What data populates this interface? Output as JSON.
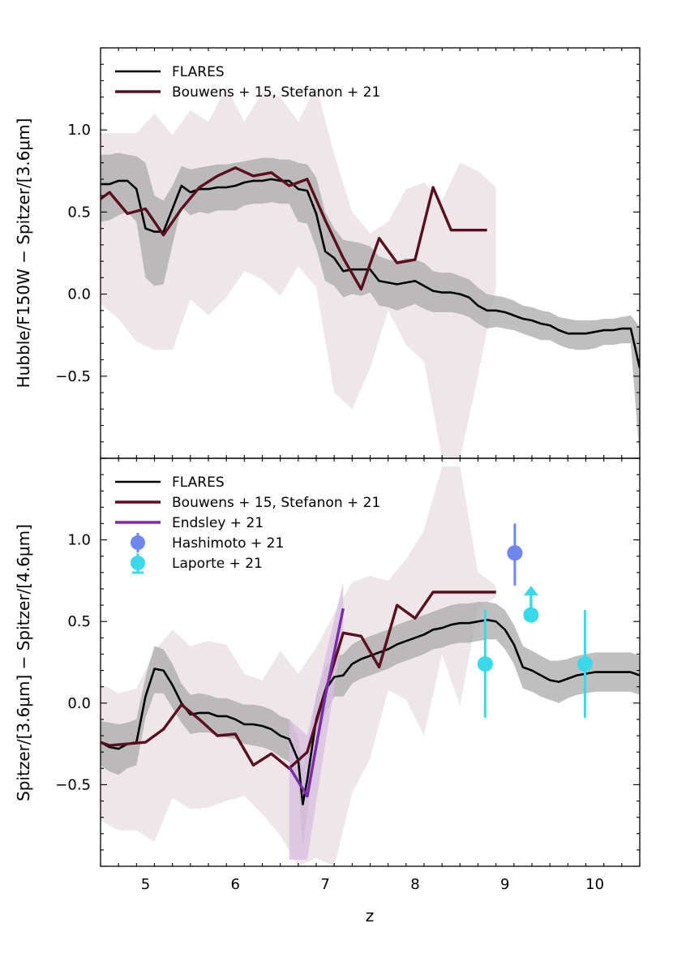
{
  "chart_data": [
    {
      "type": "line",
      "panel": "top",
      "xlabel": "z",
      "ylabel": "Hubble/F150W − Spitzer/[3.6μm]",
      "xlim": [
        4.5,
        10.5
      ],
      "ylim": [
        -1.0,
        1.5
      ],
      "xticks": [
        5,
        6,
        7,
        8,
        9,
        10
      ],
      "xtick_labels": [
        "5",
        "6",
        "7",
        "8",
        "9",
        "10"
      ],
      "yticks": [
        -0.5,
        0.0,
        0.5,
        1.0
      ],
      "ytick_labels": [
        "−0.5",
        "0.0",
        "0.5",
        "1.0"
      ],
      "legend": [
        "FLARES",
        "Bouwens + 15,  Stefanon + 21"
      ],
      "legend_position": "top-left",
      "series": [
        {
          "name": "FLARES",
          "color": "#000000",
          "x": [
            4.5,
            4.6,
            4.7,
            4.8,
            4.9,
            5.0,
            5.1,
            5.2,
            5.3,
            5.4,
            5.5,
            5.6,
            5.7,
            5.8,
            5.9,
            6.0,
            6.1,
            6.2,
            6.3,
            6.4,
            6.5,
            6.6,
            6.7,
            6.8,
            6.9,
            7.0,
            7.1,
            7.2,
            7.3,
            7.4,
            7.5,
            7.6,
            7.7,
            7.8,
            7.9,
            8.0,
            8.1,
            8.2,
            8.3,
            8.4,
            8.5,
            8.6,
            8.7,
            8.8,
            8.9,
            9.0,
            9.1,
            9.2,
            9.3,
            9.4,
            9.5,
            9.6,
            9.7,
            9.8,
            9.9,
            10.0,
            10.1,
            10.2,
            10.3,
            10.4,
            10.5
          ],
          "values": [
            0.67,
            0.67,
            0.69,
            0.69,
            0.64,
            0.4,
            0.38,
            0.38,
            0.52,
            0.66,
            0.62,
            0.64,
            0.64,
            0.65,
            0.65,
            0.66,
            0.68,
            0.69,
            0.69,
            0.7,
            0.69,
            0.69,
            0.64,
            0.63,
            0.49,
            0.26,
            0.22,
            0.14,
            0.15,
            0.15,
            0.15,
            0.08,
            0.07,
            0.06,
            0.07,
            0.08,
            0.05,
            0.02,
            0.01,
            0.01,
            0.0,
            -0.02,
            -0.07,
            -0.1,
            -0.1,
            -0.11,
            -0.13,
            -0.15,
            -0.16,
            -0.18,
            -0.19,
            -0.22,
            -0.24,
            -0.24,
            -0.24,
            -0.23,
            -0.22,
            -0.22,
            -0.21,
            -0.21,
            -0.45
          ]
        },
        {
          "name": "Bouwens + 15,  Stefanon + 21",
          "color": "#5a0f1e",
          "x": [
            4.5,
            4.6,
            4.8,
            5.0,
            5.2,
            5.4,
            5.6,
            5.8,
            6.0,
            6.2,
            6.4,
            6.6,
            6.8,
            7.0,
            7.2,
            7.4,
            7.6,
            7.8,
            8.0,
            8.2,
            8.4,
            8.6,
            8.8
          ],
          "values": [
            0.58,
            0.62,
            0.49,
            0.52,
            0.36,
            0.52,
            0.65,
            0.72,
            0.77,
            0.72,
            0.74,
            0.66,
            0.7,
            0.45,
            0.22,
            0.03,
            0.34,
            0.19,
            0.21,
            0.65,
            0.39,
            0.39,
            0.39
          ]
        }
      ],
      "bands": [
        {
          "name": "FLARES 1σ",
          "color": "#a9a9a9",
          "x": [
            4.5,
            4.6,
            4.7,
            4.8,
            4.9,
            5.0,
            5.1,
            5.2,
            5.3,
            5.4,
            5.5,
            5.6,
            5.7,
            5.8,
            5.9,
            6.0,
            6.1,
            6.2,
            6.3,
            6.4,
            6.5,
            6.6,
            6.7,
            6.8,
            6.9,
            7.0,
            7.1,
            7.2,
            7.3,
            7.4,
            7.5,
            7.6,
            7.7,
            7.8,
            7.9,
            8.0,
            8.1,
            8.2,
            8.3,
            8.4,
            8.5,
            8.6,
            8.7,
            8.8,
            8.9,
            9.0,
            9.1,
            9.2,
            9.3,
            9.4,
            9.5,
            9.6,
            9.7,
            9.8,
            9.9,
            10.0,
            10.1,
            10.2,
            10.3,
            10.4,
            10.5
          ],
          "upper": [
            0.85,
            0.85,
            0.86,
            0.85,
            0.84,
            0.8,
            0.6,
            0.57,
            0.66,
            0.78,
            0.76,
            0.77,
            0.78,
            0.79,
            0.79,
            0.8,
            0.81,
            0.82,
            0.83,
            0.83,
            0.82,
            0.82,
            0.8,
            0.79,
            0.71,
            0.5,
            0.4,
            0.33,
            0.32,
            0.31,
            0.29,
            0.23,
            0.21,
            0.2,
            0.22,
            0.21,
            0.19,
            0.14,
            0.13,
            0.13,
            0.11,
            0.09,
            0.04,
            0.0,
            -0.01,
            -0.02,
            -0.04,
            -0.07,
            -0.08,
            -0.1,
            -0.11,
            -0.14,
            -0.15,
            -0.16,
            -0.16,
            -0.16,
            -0.15,
            -0.15,
            -0.14,
            -0.13,
            -0.2
          ],
          "lower": [
            0.44,
            0.45,
            0.48,
            0.5,
            0.44,
            0.1,
            0.05,
            0.06,
            0.3,
            0.53,
            0.48,
            0.5,
            0.49,
            0.51,
            0.51,
            0.51,
            0.54,
            0.55,
            0.55,
            0.56,
            0.55,
            0.55,
            0.44,
            0.43,
            0.28,
            0.08,
            0.05,
            -0.02,
            0.0,
            -0.01,
            0.01,
            -0.07,
            -0.08,
            -0.1,
            -0.08,
            -0.06,
            -0.09,
            -0.11,
            -0.11,
            -0.11,
            -0.12,
            -0.14,
            -0.18,
            -0.21,
            -0.2,
            -0.21,
            -0.22,
            -0.24,
            -0.26,
            -0.28,
            -0.28,
            -0.31,
            -0.33,
            -0.34,
            -0.34,
            -0.33,
            -0.31,
            -0.31,
            -0.3,
            -0.3,
            -1.0
          ]
        },
        {
          "name": "Observed scatter",
          "color": "#efe6ea",
          "x": [
            4.5,
            4.7,
            4.9,
            5.1,
            5.3,
            5.5,
            5.7,
            5.9,
            6.1,
            6.3,
            6.5,
            6.7,
            6.9,
            7.1,
            7.3,
            7.5,
            7.7,
            7.9,
            8.1,
            8.3,
            8.5,
            8.7,
            8.9
          ],
          "upper": [
            0.98,
            0.98,
            0.98,
            1.1,
            0.97,
            1.12,
            1.05,
            1.26,
            1.05,
            1.23,
            1.2,
            1.05,
            1.27,
            0.85,
            0.5,
            0.37,
            0.44,
            0.64,
            0.68,
            0.57,
            0.8,
            0.75,
            0.65
          ],
          "lower": [
            -0.06,
            -0.15,
            -0.29,
            -0.34,
            -0.34,
            -0.03,
            -0.13,
            -0.02,
            0.14,
            0.09,
            -0.01,
            0.17,
            0.04,
            -0.6,
            -0.7,
            -0.45,
            -0.1,
            -0.31,
            -0.41,
            -1.0,
            -1.0,
            -0.5,
            0.05
          ]
        }
      ]
    },
    {
      "type": "line",
      "panel": "bottom",
      "xlabel": "z",
      "ylabel": "Spitzer/[3.6μm] − Spitzer/[4.6μm]",
      "xlim": [
        4.5,
        10.5
      ],
      "ylim": [
        -1.0,
        1.5
      ],
      "xticks": [
        5,
        6,
        7,
        8,
        9,
        10
      ],
      "xtick_labels": [
        "5",
        "6",
        "7",
        "8",
        "9",
        "10"
      ],
      "yticks": [
        -0.5,
        0.0,
        0.5,
        1.0
      ],
      "ytick_labels": [
        "−0.5",
        "0.0",
        "0.5",
        "1.0"
      ],
      "legend": [
        "FLARES",
        "Bouwens + 15,  Stefanon + 21",
        "Endsley + 21",
        "Hashimoto + 21",
        "Laporte + 21"
      ],
      "legend_position": "top-left",
      "series": [
        {
          "name": "FLARES",
          "color": "#000000",
          "x": [
            4.5,
            4.6,
            4.7,
            4.8,
            4.9,
            5.0,
            5.1,
            5.2,
            5.3,
            5.4,
            5.5,
            5.6,
            5.7,
            5.8,
            5.9,
            6.0,
            6.1,
            6.2,
            6.3,
            6.4,
            6.5,
            6.6,
            6.7,
            6.75,
            6.8,
            6.9,
            7.0,
            7.1,
            7.2,
            7.3,
            7.4,
            7.5,
            7.6,
            7.7,
            7.8,
            7.9,
            8.0,
            8.1,
            8.2,
            8.3,
            8.4,
            8.5,
            8.6,
            8.7,
            8.8,
            8.9,
            9.0,
            9.1,
            9.2,
            9.3,
            9.4,
            9.5,
            9.6,
            9.7,
            9.8,
            9.9,
            10.0,
            10.1,
            10.2,
            10.3,
            10.4,
            10.5
          ],
          "values": [
            -0.24,
            -0.27,
            -0.28,
            -0.25,
            -0.24,
            0.04,
            0.21,
            0.2,
            0.11,
            0.0,
            -0.07,
            -0.06,
            -0.06,
            -0.08,
            -0.08,
            -0.1,
            -0.13,
            -0.13,
            -0.14,
            -0.16,
            -0.2,
            -0.22,
            -0.35,
            -0.62,
            -0.47,
            -0.1,
            0.08,
            0.16,
            0.17,
            0.24,
            0.27,
            0.29,
            0.31,
            0.33,
            0.36,
            0.38,
            0.4,
            0.42,
            0.45,
            0.46,
            0.48,
            0.49,
            0.49,
            0.5,
            0.51,
            0.5,
            0.45,
            0.36,
            0.22,
            0.2,
            0.17,
            0.14,
            0.13,
            0.15,
            0.17,
            0.18,
            0.19,
            0.19,
            0.19,
            0.19,
            0.19,
            0.17
          ]
        },
        {
          "name": "Bouwens + 15,  Stefanon + 21",
          "color": "#5a0f1e",
          "x": [
            4.5,
            4.6,
            4.8,
            5.0,
            5.2,
            5.4,
            5.6,
            5.8,
            6.0,
            6.2,
            6.4,
            6.6,
            6.8,
            7.0,
            7.2,
            7.4,
            7.6,
            7.8,
            8.0,
            8.2,
            8.4,
            8.6,
            8.8,
            8.9
          ],
          "values": [
            -0.24,
            -0.26,
            -0.25,
            -0.24,
            -0.16,
            -0.01,
            -0.1,
            -0.2,
            -0.19,
            -0.38,
            -0.31,
            -0.4,
            -0.3,
            0.07,
            0.43,
            0.41,
            0.22,
            0.6,
            0.52,
            0.68,
            0.68,
            0.68,
            0.68,
            0.68
          ]
        },
        {
          "name": "Endsley + 21",
          "color": "#7a2ba8",
          "x": [
            6.6,
            6.8,
            7.0,
            7.2
          ],
          "values": [
            -0.39,
            -0.57,
            0.04,
            0.58
          ]
        }
      ],
      "bands": [
        {
          "name": "FLARES 1σ",
          "color": "#a9a9a9",
          "x": [
            4.5,
            4.6,
            4.7,
            4.8,
            4.9,
            5.0,
            5.1,
            5.2,
            5.3,
            5.4,
            5.5,
            5.6,
            5.7,
            5.8,
            5.9,
            6.0,
            6.1,
            6.2,
            6.3,
            6.4,
            6.5,
            6.6,
            6.7,
            6.75,
            6.8,
            6.9,
            7.0,
            7.1,
            7.2,
            7.3,
            7.4,
            7.5,
            7.6,
            7.7,
            7.8,
            7.9,
            8.0,
            8.1,
            8.2,
            8.3,
            8.4,
            8.5,
            8.6,
            8.7,
            8.8,
            8.9,
            9.0,
            9.1,
            9.2,
            9.3,
            9.4,
            9.5,
            9.6,
            9.7,
            9.8,
            9.9,
            10.0,
            10.1,
            10.2,
            10.3,
            10.4,
            10.5
          ],
          "upper": [
            -0.11,
            -0.12,
            -0.13,
            -0.12,
            -0.1,
            0.16,
            0.35,
            0.33,
            0.24,
            0.12,
            0.05,
            0.06,
            0.05,
            0.03,
            0.03,
            0.01,
            -0.01,
            -0.01,
            -0.02,
            -0.04,
            -0.08,
            -0.1,
            -0.2,
            -0.4,
            -0.28,
            0.05,
            0.22,
            0.28,
            0.3,
            0.36,
            0.39,
            0.41,
            0.43,
            0.45,
            0.48,
            0.5,
            0.52,
            0.54,
            0.56,
            0.58,
            0.6,
            0.61,
            0.61,
            0.62,
            0.62,
            0.61,
            0.57,
            0.48,
            0.35,
            0.32,
            0.29,
            0.26,
            0.26,
            0.27,
            0.29,
            0.3,
            0.31,
            0.31,
            0.31,
            0.31,
            0.31,
            0.29
          ],
          "lower": [
            -0.38,
            -0.42,
            -0.44,
            -0.4,
            -0.38,
            -0.09,
            0.06,
            0.06,
            -0.03,
            -0.12,
            -0.19,
            -0.18,
            -0.18,
            -0.2,
            -0.21,
            -0.22,
            -0.25,
            -0.26,
            -0.27,
            -0.29,
            -0.33,
            -0.36,
            -0.5,
            -0.88,
            -0.68,
            -0.26,
            -0.07,
            0.04,
            0.04,
            0.12,
            0.15,
            0.17,
            0.19,
            0.21,
            0.24,
            0.26,
            0.28,
            0.3,
            0.33,
            0.34,
            0.36,
            0.37,
            0.37,
            0.38,
            0.39,
            0.39,
            0.33,
            0.24,
            0.09,
            0.07,
            0.04,
            0.02,
            0.0,
            0.03,
            0.05,
            0.06,
            0.07,
            0.07,
            0.07,
            0.07,
            0.07,
            0.05
          ]
        },
        {
          "name": "Observed scatter",
          "color": "#efe6ea",
          "x": [
            4.5,
            4.7,
            4.9,
            5.1,
            5.3,
            5.5,
            5.7,
            5.9,
            6.1,
            6.3,
            6.5,
            6.7,
            6.9,
            7.1,
            7.3,
            7.5,
            7.7,
            7.9,
            8.1,
            8.3,
            8.5,
            8.7,
            8.9
          ],
          "upper": [
            0.12,
            0.06,
            0.09,
            0.32,
            0.45,
            0.35,
            0.38,
            0.36,
            0.18,
            0.14,
            0.32,
            0.18,
            0.34,
            0.55,
            0.74,
            0.78,
            0.75,
            0.88,
            1.06,
            1.45,
            1.45,
            0.8,
            0.72
          ],
          "lower": [
            -0.72,
            -0.78,
            -0.78,
            -0.85,
            -0.58,
            -0.65,
            -0.64,
            -0.6,
            -0.57,
            -0.68,
            -0.81,
            -1.0,
            -0.95,
            -1.0,
            -0.55,
            -0.34,
            0.08,
            0.02,
            -0.2,
            0.3,
            -0.02,
            0.58,
            0.65
          ]
        },
        {
          "name": "Endsley + 21 range",
          "color": "#d8bfe0",
          "x": [
            6.6,
            6.8,
            7.0,
            7.2
          ],
          "upper": [
            -0.1,
            -0.2,
            0.28,
            0.74
          ],
          "lower": [
            -0.96,
            -0.96,
            -0.25,
            0.43
          ]
        }
      ],
      "points": [
        {
          "name": "Hashimoto + 21",
          "color": "#6f86ef",
          "x": 9.11,
          "y": 0.92,
          "yerr_low": 0.2,
          "yerr_high": 0.18
        },
        {
          "name": "Laporte + 21",
          "color": "#3ad8e8",
          "x": 8.78,
          "y": 0.24,
          "yerr_low": 0.33,
          "yerr_high": 0.33
        },
        {
          "name": "Laporte + 21",
          "color": "#3ad8e8",
          "x": 9.29,
          "y": 0.54,
          "lower_limit": true
        },
        {
          "name": "Laporte + 21",
          "color": "#3ad8e8",
          "x": 9.89,
          "y": 0.24,
          "yerr_low": 0.33,
          "yerr_high": 0.33
        }
      ]
    }
  ]
}
